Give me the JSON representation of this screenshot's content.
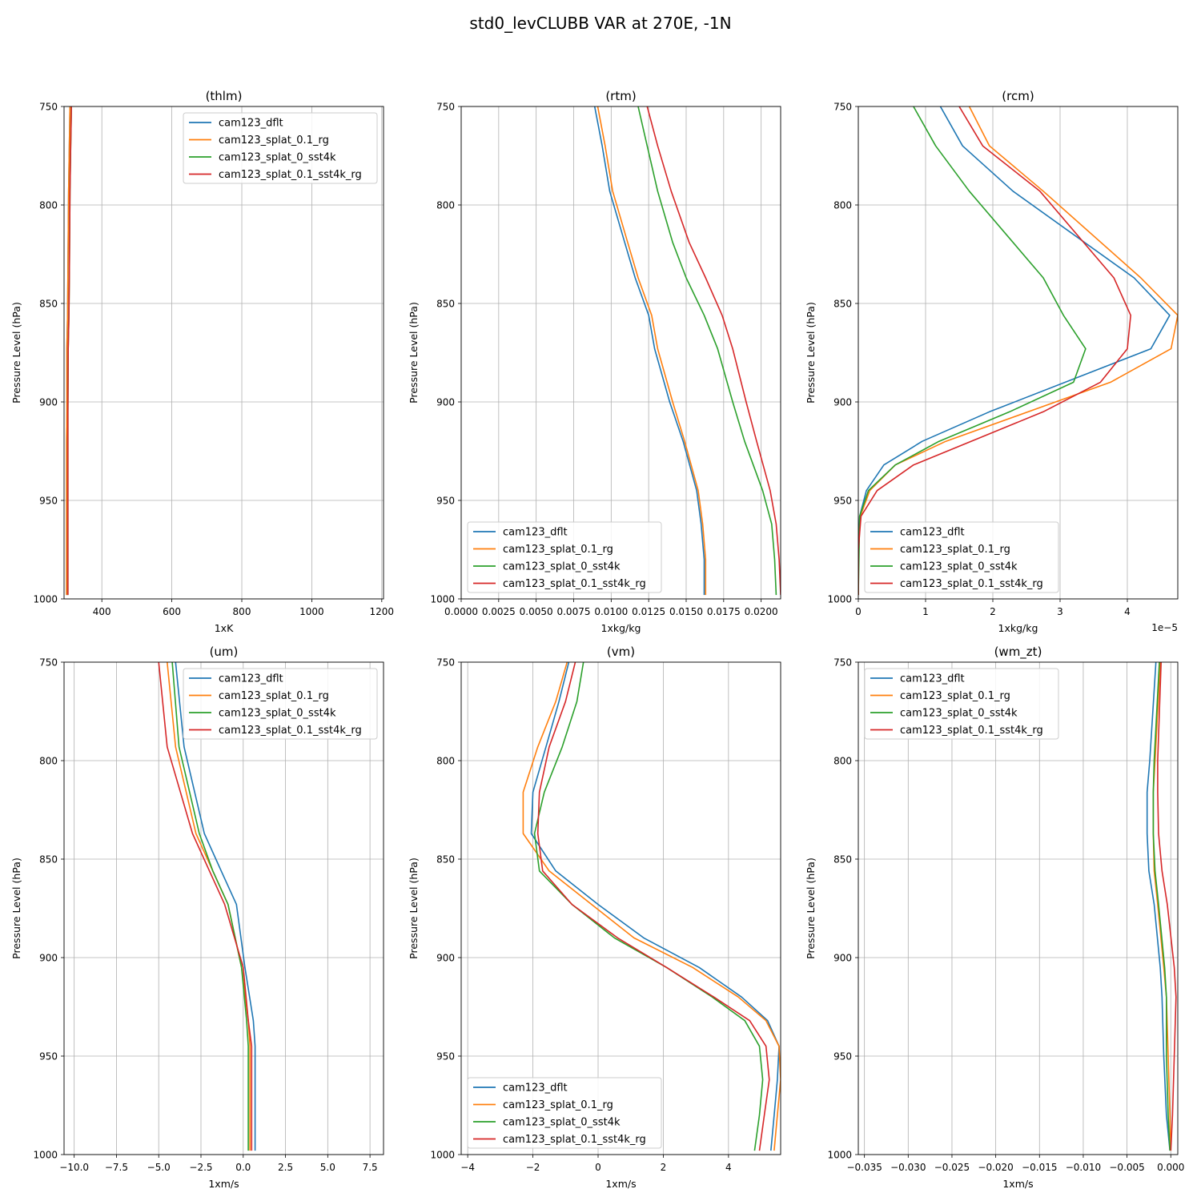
{
  "figure": {
    "title": "std0_levCLUBB VAR at 270E, -1N"
  },
  "series_names": [
    "cam123_dflt",
    "cam123_splat_0.1_rg",
    "cam123_splat_0_sst4k",
    "cam123_splat_0.1_sst4k_rg"
  ],
  "series_colors": [
    "#1f77b4",
    "#ff7f0e",
    "#2ca02c",
    "#d62728"
  ],
  "chart_data": [
    {
      "type": "line",
      "title": "(thlm)",
      "xlabel": "1xK",
      "ylabel": "Pressure Level (hPa)",
      "xlim": [
        292,
        1205
      ],
      "ylim": [
        1000,
        750
      ],
      "xticks": [
        400,
        600,
        800,
        1000,
        1200
      ],
      "xtick_labels": [
        "400",
        "600",
        "800",
        "1000",
        "1200"
      ],
      "yticks": [
        750,
        800,
        850,
        900,
        950,
        1000
      ],
      "ytick_labels": [
        "750",
        "800",
        "850",
        "900",
        "950",
        "1000"
      ],
      "grid": true,
      "legend_position": "upper-right",
      "series": [
        {
          "name": "cam123_dflt",
          "x": [
            309,
            307,
            305,
            303,
            302,
            300,
            300,
            299,
            299,
            299,
            299
          ],
          "y": [
            750,
            770,
            793,
            837,
            856,
            873,
            905,
            920,
            945,
            962,
            998
          ]
        },
        {
          "name": "cam123_splat_0.1_rg",
          "x": [
            309,
            307,
            305,
            303,
            302,
            300,
            300,
            299,
            299,
            299,
            299
          ],
          "y": [
            750,
            770,
            793,
            837,
            856,
            873,
            905,
            920,
            945,
            962,
            998
          ]
        },
        {
          "name": "cam123_splat_0_sst4k",
          "x": [
            313,
            311,
            309,
            307,
            306,
            304,
            303,
            303,
            303,
            303,
            303
          ],
          "y": [
            750,
            770,
            793,
            837,
            856,
            873,
            905,
            920,
            945,
            962,
            998
          ]
        },
        {
          "name": "cam123_splat_0.1_sst4k_rg",
          "x": [
            313,
            311,
            309,
            307,
            306,
            304,
            303,
            303,
            303,
            303,
            303
          ],
          "y": [
            750,
            770,
            793,
            837,
            856,
            873,
            905,
            920,
            945,
            962,
            998
          ]
        }
      ]
    },
    {
      "type": "line",
      "title": "(rtm)",
      "xlabel": "1xkg/kg",
      "ylabel": "Pressure Level (hPa)",
      "xlim": [
        0,
        0.0213
      ],
      "ylim": [
        1000,
        750
      ],
      "xticks": [
        0,
        0.0025,
        0.005,
        0.0075,
        0.01,
        0.0125,
        0.015,
        0.0175,
        0.02
      ],
      "xtick_labels": [
        "0.0000",
        "0.0025",
        "0.0050",
        "0.0075",
        "0.0100",
        "0.0125",
        "0.0150",
        "0.0175",
        "0.0200"
      ],
      "yticks": [
        750,
        800,
        850,
        900,
        950,
        1000
      ],
      "ytick_labels": [
        "750",
        "800",
        "850",
        "900",
        "950",
        "1000"
      ],
      "grid": true,
      "legend_position": "lower-left",
      "series": [
        {
          "name": "cam123_dflt",
          "x": [
            0.0089,
            0.0094,
            0.0099,
            0.0109,
            0.0116,
            0.0125,
            0.0129,
            0.0139,
            0.0148,
            0.0157,
            0.016,
            0.0162,
            0.0162
          ],
          "y": [
            750,
            770,
            793,
            819,
            837,
            856,
            873,
            900,
            920,
            945,
            962,
            980,
            998
          ]
        },
        {
          "name": "cam123_splat_0.1_rg",
          "x": [
            0.0091,
            0.0096,
            0.0101,
            0.0111,
            0.0118,
            0.0127,
            0.0131,
            0.0141,
            0.0149,
            0.0158,
            0.0161,
            0.0163,
            0.0163
          ],
          "y": [
            750,
            770,
            793,
            819,
            837,
            856,
            873,
            900,
            920,
            945,
            962,
            980,
            998
          ]
        },
        {
          "name": "cam123_splat_0_sst4k",
          "x": [
            0.0118,
            0.0124,
            0.0131,
            0.0141,
            0.015,
            0.0162,
            0.0171,
            0.0181,
            0.0189,
            0.0201,
            0.0207,
            0.0209,
            0.021
          ],
          "y": [
            750,
            770,
            793,
            819,
            837,
            856,
            873,
            900,
            920,
            945,
            962,
            980,
            998
          ]
        },
        {
          "name": "cam123_splat_0.1_sst4k_rg",
          "x": [
            0.0124,
            0.0131,
            0.014,
            0.0152,
            0.0163,
            0.0174,
            0.0181,
            0.019,
            0.0197,
            0.0206,
            0.021,
            0.0212,
            0.0213
          ],
          "y": [
            750,
            770,
            793,
            819,
            837,
            856,
            873,
            900,
            920,
            945,
            962,
            980,
            998
          ]
        }
      ]
    },
    {
      "type": "line",
      "title": "(rcm)",
      "xlabel": "1xkg/kg",
      "ylabel": "Pressure Level (hPa)",
      "offset_text": "1e−5",
      "xlim": [
        0,
        4.75
      ],
      "ylim": [
        1000,
        750
      ],
      "xticks": [
        0,
        1,
        2,
        3,
        4
      ],
      "xtick_labels": [
        "0",
        "1",
        "2",
        "3",
        "4"
      ],
      "yticks": [
        750,
        800,
        850,
        900,
        950,
        1000
      ],
      "ytick_labels": [
        "750",
        "800",
        "850",
        "900",
        "950",
        "1000"
      ],
      "grid": true,
      "legend_position": "lower-left",
      "series": [
        {
          "name": "cam123_dflt",
          "x": [
            1.22,
            1.55,
            2.3,
            4.1,
            4.63,
            4.35,
            1.95,
            0.95,
            0.38,
            0.12,
            0.02,
            0.0,
            0.0
          ],
          "y": [
            750,
            770,
            793,
            837,
            856,
            873,
            905,
            920,
            932,
            945,
            958,
            975,
            998
          ]
        },
        {
          "name": "cam123_splat_0.1_rg",
          "x": [
            1.65,
            1.95,
            2.75,
            4.2,
            4.75,
            4.65,
            3.75,
            1.3,
            0.55,
            0.17,
            0.03,
            0.0,
            0.0
          ],
          "y": [
            750,
            770,
            793,
            837,
            856,
            873,
            890,
            920,
            932,
            945,
            958,
            975,
            998
          ]
        },
        {
          "name": "cam123_splat_0_sst4k",
          "x": [
            0.82,
            1.15,
            1.65,
            2.75,
            3.05,
            3.38,
            3.2,
            2.25,
            1.2,
            0.55,
            0.15,
            0.02,
            0.0
          ],
          "y": [
            750,
            770,
            793,
            837,
            856,
            873,
            890,
            905,
            920,
            932,
            945,
            958,
            998
          ]
        },
        {
          "name": "cam123_splat_0.1_sst4k_rg",
          "x": [
            1.5,
            1.85,
            2.7,
            3.8,
            4.05,
            4.0,
            3.6,
            2.75,
            0.82,
            0.28,
            0.04,
            0.0,
            0.0
          ],
          "y": [
            750,
            770,
            793,
            837,
            856,
            873,
            890,
            905,
            932,
            945,
            958,
            975,
            998
          ]
        }
      ]
    },
    {
      "type": "line",
      "title": "(um)",
      "xlabel": "1xm/s",
      "ylabel": "Pressure Level (hPa)",
      "xlim": [
        -10.6,
        8.3
      ],
      "ylim": [
        1000,
        750
      ],
      "xticks": [
        -10,
        -7.5,
        -5,
        -2.5,
        0,
        2.5,
        5,
        7.5
      ],
      "xtick_labels": [
        "−10.0",
        "−7.5",
        "−5.0",
        "−2.5",
        "0.0",
        "2.5",
        "5.0",
        "7.5"
      ],
      "yticks": [
        750,
        800,
        850,
        900,
        950,
        1000
      ],
      "ytick_labels": [
        "750",
        "800",
        "850",
        "900",
        "950",
        "1000"
      ],
      "grid": true,
      "legend_position": "upper-right",
      "series": [
        {
          "name": "cam123_dflt",
          "x": [
            -4.0,
            -3.5,
            -2.3,
            -1.3,
            -0.4,
            0.1,
            0.6,
            0.7,
            0.7,
            0.7
          ],
          "y": [
            750,
            793,
            837,
            856,
            873,
            905,
            932,
            945,
            962,
            998
          ]
        },
        {
          "name": "cam123_splat_0.1_rg",
          "x": [
            -4.5,
            -4.0,
            -2.8,
            -1.8,
            -0.9,
            -0.1,
            0.3,
            0.4,
            0.4,
            0.4
          ],
          "y": [
            750,
            793,
            837,
            856,
            873,
            905,
            932,
            945,
            962,
            998
          ]
        },
        {
          "name": "cam123_splat_0_sst4k",
          "x": [
            -4.2,
            -3.8,
            -2.6,
            -1.8,
            -0.9,
            -0.1,
            0.2,
            0.3,
            0.3,
            0.3
          ],
          "y": [
            750,
            793,
            837,
            856,
            873,
            905,
            932,
            945,
            962,
            998
          ]
        },
        {
          "name": "cam123_splat_0.1_sst4k_rg",
          "x": [
            -5.0,
            -4.5,
            -3.0,
            -2.0,
            -1.1,
            0.0,
            0.3,
            0.5,
            0.5,
            0.5
          ],
          "y": [
            750,
            793,
            837,
            856,
            873,
            905,
            932,
            945,
            962,
            998
          ]
        }
      ]
    },
    {
      "type": "line",
      "title": "(vm)",
      "xlabel": "1xm/s",
      "ylabel": "Pressure Level (hPa)",
      "xlim": [
        -4.2,
        5.6
      ],
      "ylim": [
        1000,
        750
      ],
      "xticks": [
        -4,
        -2,
        0,
        2,
        4
      ],
      "xtick_labels": [
        "−4",
        "−2",
        "0",
        "2",
        "4"
      ],
      "yticks": [
        750,
        800,
        850,
        900,
        950,
        1000
      ],
      "ytick_labels": [
        "750",
        "800",
        "850",
        "900",
        "950",
        "1000"
      ],
      "grid": true,
      "legend_position": "lower-left",
      "series": [
        {
          "name": "cam123_dflt",
          "x": [
            -0.9,
            -1.2,
            -1.6,
            -2.0,
            -2.05,
            -1.3,
            0.0,
            1.4,
            3.1,
            4.4,
            5.2,
            5.55,
            5.5,
            5.4,
            5.3
          ],
          "y": [
            750,
            770,
            793,
            816,
            837,
            856,
            873,
            890,
            905,
            920,
            932,
            945,
            962,
            980,
            998
          ]
        },
        {
          "name": "cam123_splat_0.1_rg",
          "x": [
            -0.95,
            -1.3,
            -1.85,
            -2.3,
            -2.3,
            -1.5,
            -0.2,
            1.1,
            2.9,
            4.3,
            5.15,
            5.55,
            5.6,
            5.5,
            5.4
          ],
          "y": [
            750,
            770,
            793,
            816,
            837,
            856,
            873,
            890,
            905,
            920,
            932,
            945,
            962,
            980,
            998
          ]
        },
        {
          "name": "cam123_splat_0_sst4k",
          "x": [
            -0.45,
            -0.65,
            -1.1,
            -1.65,
            -1.95,
            -1.8,
            -0.8,
            0.5,
            2.1,
            3.5,
            4.5,
            4.95,
            5.05,
            4.95,
            4.8
          ],
          "y": [
            750,
            770,
            793,
            816,
            837,
            856,
            873,
            890,
            905,
            920,
            932,
            945,
            962,
            980,
            998
          ]
        },
        {
          "name": "cam123_splat_0.1_sst4k_rg",
          "x": [
            -0.7,
            -1.0,
            -1.5,
            -1.8,
            -1.85,
            -1.7,
            -0.8,
            0.6,
            2.1,
            3.55,
            4.65,
            5.15,
            5.25,
            5.1,
            4.95
          ],
          "y": [
            750,
            770,
            793,
            816,
            837,
            856,
            873,
            890,
            905,
            920,
            932,
            945,
            962,
            980,
            998
          ]
        }
      ]
    },
    {
      "type": "line",
      "title": "(wm_zt)",
      "xlabel": "1xm/s",
      "ylabel": "Pressure Level (hPa)",
      "xlim": [
        -0.0357,
        0.0008
      ],
      "ylim": [
        1000,
        750
      ],
      "xticks": [
        -0.035,
        -0.03,
        -0.025,
        -0.02,
        -0.015,
        -0.01,
        -0.005,
        0
      ],
      "xtick_labels": [
        "−0.035",
        "−0.030",
        "−0.025",
        "−0.020",
        "−0.015",
        "−0.010",
        "−0.005",
        "0.000"
      ],
      "yticks": [
        750,
        800,
        850,
        900,
        950,
        1000
      ],
      "ytick_labels": [
        "750",
        "800",
        "850",
        "900",
        "950",
        "1000"
      ],
      "grid": true,
      "legend_position": "upper-left",
      "series": [
        {
          "name": "cam123_dflt",
          "x": [
            -0.0017,
            -0.0024,
            -0.0027,
            -0.0027,
            -0.0025,
            -0.0019,
            -0.0012,
            -0.001,
            -0.0008,
            -0.0005,
            -0.0001
          ],
          "y": [
            750,
            800,
            816,
            837,
            856,
            873,
            905,
            920,
            950,
            980,
            998
          ]
        },
        {
          "name": "cam123_splat_0.1_rg",
          "x": [
            -0.0012,
            -0.0018,
            -0.002,
            -0.002,
            -0.0019,
            -0.0015,
            -0.0008,
            -0.0005,
            -0.0003,
            -0.0001,
            0.0
          ],
          "y": [
            750,
            800,
            816,
            837,
            856,
            873,
            905,
            920,
            950,
            980,
            998
          ]
        },
        {
          "name": "cam123_splat_0_sst4k",
          "x": [
            -0.0013,
            -0.0019,
            -0.002,
            -0.002,
            -0.0018,
            -0.0014,
            -0.0007,
            -0.0005,
            -0.0005,
            -0.0003,
            -0.0001
          ],
          "y": [
            750,
            800,
            816,
            837,
            856,
            873,
            905,
            920,
            950,
            980,
            998
          ]
        },
        {
          "name": "cam123_splat_0.1_sst4k_rg",
          "x": [
            -0.0011,
            -0.0015,
            -0.0015,
            -0.0014,
            -0.001,
            -0.0004,
            0.0004,
            0.0006,
            0.0004,
            0.0002,
            0.0
          ],
          "y": [
            750,
            800,
            816,
            837,
            856,
            873,
            905,
            920,
            950,
            980,
            998
          ]
        }
      ]
    }
  ]
}
